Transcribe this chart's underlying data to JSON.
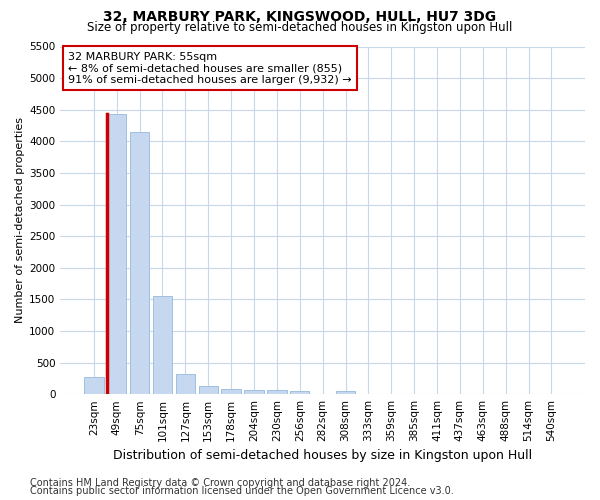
{
  "title": "32, MARBURY PARK, KINGSWOOD, HULL, HU7 3DG",
  "subtitle": "Size of property relative to semi-detached houses in Kingston upon Hull",
  "xlabel": "Distribution of semi-detached houses by size in Kingston upon Hull",
  "ylabel": "Number of semi-detached properties",
  "footnote1": "Contains HM Land Registry data © Crown copyright and database right 2024.",
  "footnote2": "Contains public sector information licensed under the Open Government Licence v3.0.",
  "annotation_title": "32 MARBURY PARK: 55sqm",
  "annotation_line2": "← 8% of semi-detached houses are smaller (855)",
  "annotation_line3": "91% of semi-detached houses are larger (9,932) →",
  "bin_labels": [
    "23sqm",
    "49sqm",
    "75sqm",
    "101sqm",
    "127sqm",
    "153sqm",
    "178sqm",
    "204sqm",
    "230sqm",
    "256sqm",
    "282sqm",
    "308sqm",
    "333sqm",
    "359sqm",
    "385sqm",
    "411sqm",
    "437sqm",
    "463sqm",
    "488sqm",
    "514sqm",
    "540sqm"
  ],
  "bar_values": [
    270,
    4430,
    4150,
    1560,
    320,
    130,
    80,
    70,
    65,
    55,
    0,
    50,
    0,
    0,
    0,
    0,
    0,
    0,
    0,
    0,
    0
  ],
  "bar_color_normal": "#c5d8ef",
  "bar_edge_normal": "#a0c0e0",
  "highlight_bar_index": 1,
  "highlight_edge_color": "#cc0000",
  "ylim_max": 5500,
  "yticks": [
    0,
    500,
    1000,
    1500,
    2000,
    2500,
    3000,
    3500,
    4000,
    4500,
    5000,
    5500
  ],
  "bg_color": "#ffffff",
  "plot_bg_color": "#ffffff",
  "grid_color": "#c8d8e8",
  "title_fontsize": 10,
  "subtitle_fontsize": 8.5,
  "annotation_fontsize": 8,
  "ylabel_fontsize": 8,
  "xlabel_fontsize": 9,
  "footnote_fontsize": 7,
  "tick_fontsize": 7.5
}
